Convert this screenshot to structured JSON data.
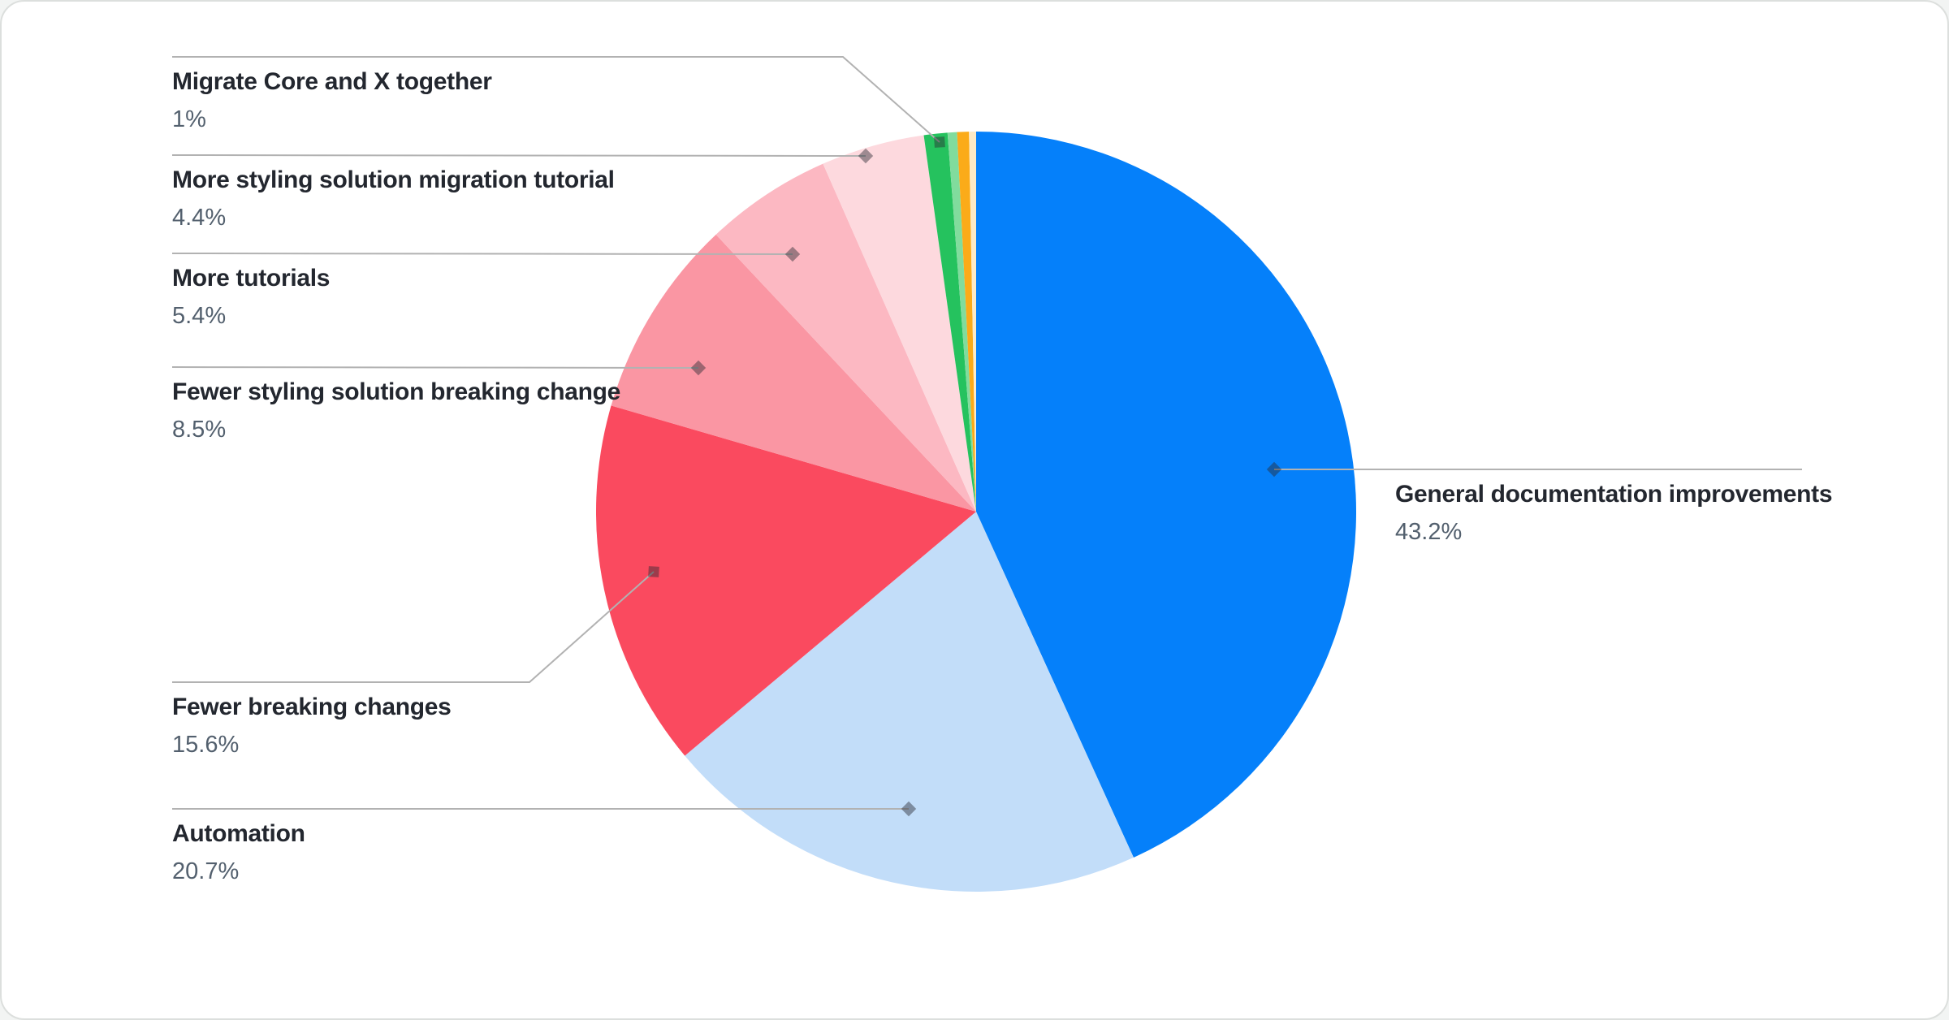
{
  "chart_data": {
    "type": "pie",
    "title": "",
    "legend_position": "none",
    "start_angle_deg": -90,
    "direction": "clockwise",
    "slices": [
      {
        "label": "General documentation improvements",
        "value": 43.2,
        "display": "43.2%",
        "color": "#0580fa"
      },
      {
        "label": "Automation",
        "value": 20.7,
        "display": "20.7%",
        "color": "#c2ddf9"
      },
      {
        "label": "Fewer breaking changes",
        "value": 15.6,
        "display": "15.6%",
        "color": "#fa4a5f"
      },
      {
        "label": "Fewer styling solution breaking change",
        "value": 8.5,
        "display": "8.5%",
        "color": "#fa96a3"
      },
      {
        "label": "More tutorials",
        "value": 5.4,
        "display": "5.4%",
        "color": "#fcb8c2"
      },
      {
        "label": "More styling solution migration tutorial",
        "value": 4.4,
        "display": "4.4%",
        "color": "#fdd9de"
      },
      {
        "label": "Migrate Core and X together",
        "value": 1,
        "display": "1%",
        "color": "#25c25e"
      },
      {
        "label": "",
        "value": 0.4,
        "display": "",
        "color": "#81dc9d"
      },
      {
        "label": "",
        "value": 0.5,
        "display": "",
        "color": "#fbab19"
      },
      {
        "label": "",
        "value": 0.3,
        "display": "",
        "color": "#fdeac6"
      }
    ],
    "colors": {
      "leader_line": "#b2b2b2",
      "marker_fill": "#2b2b33",
      "label_text": "#23272f",
      "percent_text": "#53606e",
      "card_background": "#ffffff",
      "card_border": "#dcdfdd"
    }
  }
}
